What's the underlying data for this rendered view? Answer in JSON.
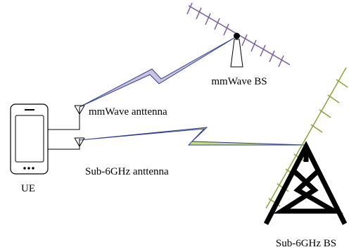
{
  "labels": {
    "mmwave_bs": "mmWave BS",
    "mmwave_antenna": "mmWave anttenna",
    "sub6_antenna": "Sub-6GHz anttenna",
    "ue": "UE",
    "sub6_bs": "Sub-6GHz BS"
  }
}
